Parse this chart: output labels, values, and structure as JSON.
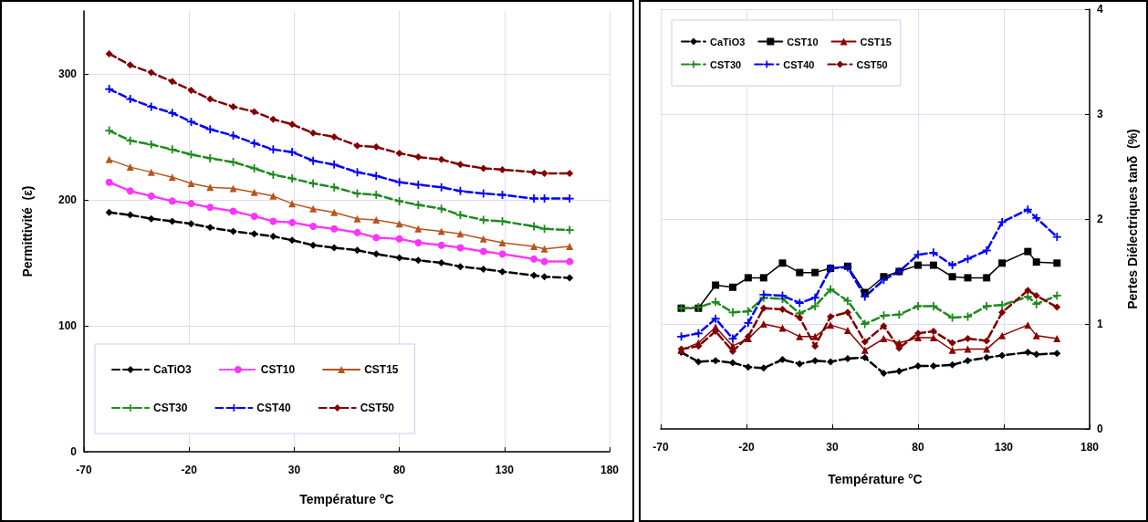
{
  "chart_data": [
    {
      "type": "line",
      "xlabel": "Température °C",
      "ylabel": "Permittivité  (ε)",
      "x": [
        -58,
        -48,
        -38,
        -28,
        -19,
        -10,
        1,
        11,
        20,
        29,
        39,
        49,
        60,
        69,
        80,
        89,
        100,
        109,
        120,
        129,
        144,
        149,
        161
      ],
      "xlim": [
        -70,
        180
      ],
      "xticks": [
        -70,
        -20,
        30,
        80,
        130,
        180
      ],
      "ylim": [
        0,
        350
      ],
      "yticks": [
        0,
        100,
        200,
        300
      ],
      "grid": true,
      "legend": "bottom left",
      "series": [
        {
          "name": "CaTiO3",
          "color": "#000000",
          "marker": "diamond",
          "line_style": "dashed",
          "values": [
            190,
            188,
            185,
            183,
            181,
            178,
            175,
            173,
            171,
            168,
            164,
            162,
            160,
            157,
            154,
            152,
            150,
            147,
            145,
            143,
            140,
            139,
            138
          ]
        },
        {
          "name": "CST10",
          "color": "#ff33ff",
          "marker": "circle",
          "line_style": "dotted",
          "values": [
            214,
            207,
            203,
            199,
            197,
            194,
            191,
            187,
            183,
            182,
            179,
            177,
            174,
            170,
            169,
            166,
            164,
            162,
            159,
            157,
            153,
            151,
            151
          ]
        },
        {
          "name": "CST15",
          "color": "#b5541c",
          "marker": "triangle",
          "line_style": "solid",
          "values": [
            232,
            226,
            222,
            218,
            213,
            210,
            209,
            206,
            203,
            197,
            193,
            190,
            185,
            184,
            181,
            177,
            175,
            173,
            169,
            166,
            163,
            161,
            163
          ]
        },
        {
          "name": "CST30",
          "color": "#1e8a1e",
          "marker": "cross",
          "line_style": "dashed",
          "values": [
            255,
            247,
            244,
            240,
            236,
            233,
            230,
            225,
            220,
            217,
            213,
            210,
            205,
            204,
            199,
            196,
            193,
            188,
            184,
            183,
            179,
            177,
            176
          ]
        },
        {
          "name": "CST40",
          "color": "#0000ff",
          "marker": "cross",
          "line_style": "dashed",
          "values": [
            288,
            280,
            274,
            269,
            262,
            256,
            251,
            245,
            240,
            238,
            231,
            228,
            222,
            219,
            214,
            212,
            210,
            207,
            205,
            204,
            201,
            201,
            201
          ]
        },
        {
          "name": "CST50",
          "color": "#800000",
          "marker": "diamond",
          "line_style": "dashed",
          "values": [
            316,
            307,
            301,
            294,
            287,
            280,
            274,
            270,
            264,
            260,
            253,
            250,
            243,
            242,
            237,
            234,
            232,
            228,
            225,
            224,
            222,
            221,
            221
          ]
        }
      ]
    },
    {
      "type": "line",
      "xlabel": "Température °C",
      "y2label": "Pertes Diélectriques tanδ  (%)",
      "x": [
        -58,
        -48,
        -38,
        -28,
        -19,
        -10,
        1,
        11,
        20,
        29,
        39,
        49,
        60,
        69,
        80,
        89,
        100,
        109,
        120,
        129,
        144,
        149,
        161
      ],
      "xlim": [
        -70,
        180
      ],
      "xticks": [
        -70,
        -20,
        30,
        80,
        130,
        180
      ],
      "y2lim": [
        0,
        4
      ],
      "y2ticks": [
        0,
        1,
        2,
        3,
        4
      ],
      "grid": true,
      "legend": "top left",
      "series": [
        {
          "name": "CaTiO3",
          "color": "#000000",
          "marker": "diamond",
          "line_style": "dashed",
          "axis": "y2",
          "values": [
            0.73,
            0.64,
            0.65,
            0.63,
            0.59,
            0.58,
            0.66,
            0.62,
            0.65,
            0.64,
            0.67,
            0.68,
            0.53,
            0.55,
            0.6,
            0.6,
            0.61,
            0.65,
            0.68,
            0.7,
            0.73,
            0.71,
            0.72
          ]
        },
        {
          "name": "CST10",
          "color": "#000000",
          "marker": "square",
          "line_style": "solid",
          "axis": "y2",
          "values": [
            1.15,
            1.15,
            1.37,
            1.35,
            1.44,
            1.44,
            1.58,
            1.49,
            1.49,
            1.53,
            1.55,
            1.3,
            1.45,
            1.5,
            1.56,
            1.56,
            1.45,
            1.44,
            1.44,
            1.58,
            1.69,
            1.59,
            1.58
          ]
        },
        {
          "name": "CST15",
          "color": "#8b0000",
          "marker": "triangle",
          "line_style": "solid",
          "axis": "y2",
          "values": [
            0.75,
            0.82,
            0.97,
            0.79,
            0.86,
            1.0,
            0.96,
            0.88,
            0.88,
            0.99,
            0.94,
            0.75,
            0.86,
            0.82,
            0.87,
            0.87,
            0.75,
            0.76,
            0.76,
            0.89,
            0.99,
            0.89,
            0.86
          ]
        },
        {
          "name": "CST30",
          "color": "#1e8a1e",
          "marker": "cross",
          "line_style": "dashed",
          "axis": "y2",
          "values": [
            1.15,
            1.16,
            1.21,
            1.11,
            1.12,
            1.25,
            1.24,
            1.1,
            1.17,
            1.33,
            1.22,
            1.0,
            1.08,
            1.09,
            1.17,
            1.17,
            1.06,
            1.07,
            1.17,
            1.18,
            1.26,
            1.19,
            1.27
          ]
        },
        {
          "name": "CST40",
          "color": "#0000ff",
          "marker": "cross",
          "line_style": "dashed",
          "axis": "y2",
          "values": [
            0.88,
            0.91,
            1.05,
            0.86,
            1.01,
            1.28,
            1.27,
            1.2,
            1.25,
            1.53,
            1.54,
            1.26,
            1.42,
            1.5,
            1.66,
            1.68,
            1.56,
            1.62,
            1.7,
            1.97,
            2.09,
            2.01,
            1.83
          ]
        },
        {
          "name": "CST50",
          "color": "#800000",
          "marker": "diamond",
          "line_style": "dashed",
          "axis": "y2",
          "values": [
            0.76,
            0.79,
            0.93,
            0.74,
            0.88,
            1.15,
            1.14,
            1.06,
            0.79,
            1.07,
            1.11,
            0.83,
            0.98,
            0.77,
            0.91,
            0.93,
            0.82,
            0.86,
            0.84,
            1.11,
            1.32,
            1.27,
            1.16
          ]
        }
      ]
    }
  ]
}
